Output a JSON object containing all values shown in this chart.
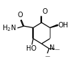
{
  "bg_color": "#ffffff",
  "bond_color": "#000000",
  "figsize": [
    1.12,
    0.95
  ],
  "dpi": 100,
  "lw": 0.9,
  "db_off": 0.012,
  "ring": [
    [
      0.44,
      0.55
    ],
    [
      0.44,
      0.38
    ],
    [
      0.57,
      0.3
    ],
    [
      0.7,
      0.38
    ],
    [
      0.7,
      0.55
    ],
    [
      0.57,
      0.63
    ]
  ],
  "xlim": [
    0.0,
    1.12
  ],
  "ylim": [
    0.0,
    0.95
  ]
}
